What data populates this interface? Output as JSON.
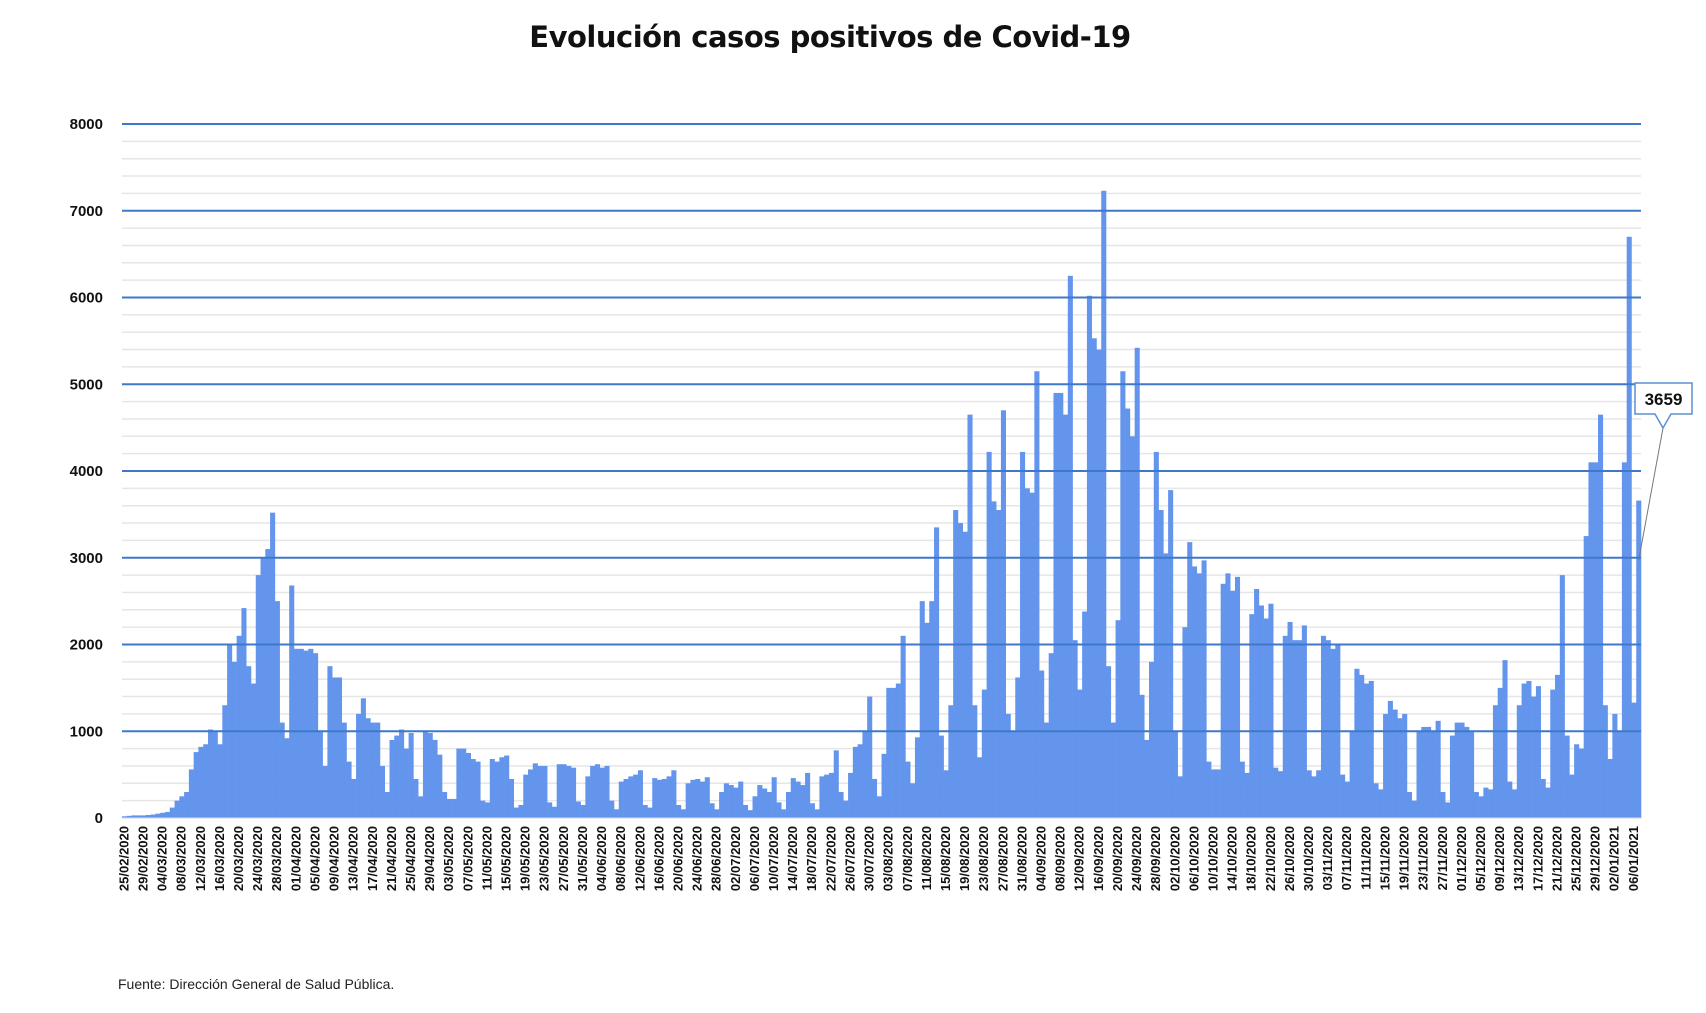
{
  "chart_data": {
    "type": "bar",
    "title": "Evolución casos positivos de Covid-19",
    "source": "Fuente: Dirección General de Salud Pública.",
    "xlabel": "",
    "ylabel": "",
    "ylim": [
      0,
      8000
    ],
    "y_ticks": [
      "0",
      "1000",
      "2000",
      "3000",
      "4000",
      "5000",
      "6000",
      "7000",
      "8000"
    ],
    "grid": {
      "major": true,
      "minor": true
    },
    "bar_color": "#6495ed",
    "gridline_color": "#3f78c8",
    "x_labels": [
      "25/02/2020",
      "29/02/2020",
      "04/03/2020",
      "08/03/2020",
      "12/03/2020",
      "16/03/2020",
      "20/03/2020",
      "24/03/2020",
      "28/03/2020",
      "01/04/2020",
      "05/04/2020",
      "09/04/2020",
      "13/04/2020",
      "17/04/2020",
      "21/04/2020",
      "25/04/2020",
      "29/04/2020",
      "03/05/2020",
      "07/05/2020",
      "11/05/2020",
      "15/05/2020",
      "19/05/2020",
      "23/05/2020",
      "27/05/2020",
      "31/05/2020",
      "04/06/2020",
      "08/06/2020",
      "12/06/2020",
      "16/06/2020",
      "20/06/2020",
      "24/06/2020",
      "28/06/2020",
      "02/07/2020",
      "06/07/2020",
      "10/07/2020",
      "14/07/2020",
      "18/07/2020",
      "22/07/2020",
      "26/07/2020",
      "30/07/2020",
      "03/08/2020",
      "07/08/2020",
      "11/08/2020",
      "15/08/2020",
      "19/08/2020",
      "23/08/2020",
      "27/08/2020",
      "31/08/2020",
      "04/09/2020",
      "08/09/2020",
      "12/09/2020",
      "16/09/2020",
      "20/09/2020",
      "24/09/2020",
      "28/09/2020",
      "02/10/2020",
      "06/10/2020",
      "10/10/2020",
      "14/10/2020",
      "18/10/2020",
      "22/10/2020",
      "26/10/2020",
      "30/10/2020",
      "03/11/2020",
      "07/11/2020",
      "11/11/2020",
      "15/11/2020",
      "19/11/2020",
      "23/11/2020",
      "27/11/2020",
      "01/12/2020",
      "05/12/2020",
      "09/12/2020",
      "13/12/2020",
      "17/12/2020",
      "21/12/2020",
      "25/12/2020",
      "29/12/2020",
      "02/01/2021",
      "06/01/2021"
    ],
    "values": [
      20,
      25,
      30,
      30,
      30,
      35,
      40,
      50,
      60,
      70,
      120,
      200,
      250,
      300,
      560,
      760,
      820,
      850,
      1020,
      1000,
      850,
      1300,
      2000,
      1800,
      2100,
      2420,
      1750,
      1550,
      2800,
      3000,
      3100,
      3520,
      2500,
      1100,
      920,
      2680,
      1950,
      1950,
      1930,
      1950,
      1900,
      1000,
      600,
      1750,
      1620,
      1620,
      1100,
      650,
      450,
      1200,
      1380,
      1150,
      1100,
      1100,
      600,
      300,
      900,
      950,
      1020,
      800,
      980,
      450,
      250,
      1000,
      980,
      900,
      730,
      300,
      220,
      220,
      800,
      800,
      750,
      680,
      650,
      200,
      180,
      680,
      650,
      700,
      720,
      450,
      120,
      150,
      500,
      560,
      630,
      600,
      600,
      180,
      130,
      620,
      620,
      600,
      580,
      190,
      150,
      480,
      600,
      620,
      580,
      600,
      200,
      100,
      420,
      450,
      480,
      500,
      550,
      150,
      120,
      460,
      440,
      450,
      480,
      550,
      150,
      100,
      400,
      440,
      450,
      420,
      470,
      170,
      100,
      300,
      400,
      380,
      350,
      420,
      150,
      90,
      250,
      380,
      340,
      300,
      470,
      180,
      100,
      300,
      460,
      420,
      380,
      520,
      170,
      100,
      480,
      500,
      520,
      780,
      300,
      200,
      520,
      820,
      850,
      1000,
      1400,
      450,
      250,
      740,
      1500,
      1500,
      1550,
      2100,
      650,
      400,
      930,
      2500,
      2250,
      2500,
      3350,
      950,
      550,
      1300,
      3550,
      3400,
      3300,
      4650,
      1300,
      700,
      1480,
      4220,
      3650,
      3550,
      4700,
      1200,
      1000,
      1620,
      4220,
      3800,
      3750,
      5150,
      1700,
      1100,
      1900,
      4900,
      4900,
      4650,
      6250,
      2050,
      1480,
      2380,
      6020,
      5530,
      5400,
      7230,
      1750,
      1100,
      2280,
      5150,
      4720,
      4400,
      5420,
      1420,
      900,
      1800,
      4220,
      3550,
      3050,
      3780,
      1000,
      480,
      2200,
      3180,
      2900,
      2820,
      2970,
      650,
      560,
      560,
      2700,
      2820,
      2620,
      2780,
      650,
      520,
      2350,
      2640,
      2450,
      2300,
      2470,
      580,
      540,
      2100,
      2260,
      2050,
      2050,
      2220,
      550,
      480,
      550,
      2100,
      2050,
      1950,
      2000,
      500,
      420,
      1000,
      1720,
      1650,
      1550,
      1580,
      400,
      330,
      1200,
      1350,
      1250,
      1150,
      1200,
      300,
      200,
      1000,
      1050,
      1050,
      1000,
      1120,
      300,
      180,
      950,
      1100,
      1100,
      1050,
      1000,
      300,
      250,
      350,
      330,
      1300,
      1500,
      1820,
      420,
      330,
      1300,
      1550,
      1580,
      1400,
      1520,
      450,
      350,
      1480,
      1650,
      2800,
      950,
      500,
      850,
      800,
      3250,
      4100,
      4100,
      4650,
      1300,
      680,
      1200,
      1000,
      4100,
      6700,
      1330,
      3659
    ],
    "annotation": {
      "label": "3659",
      "value": 3659,
      "target": "last"
    }
  }
}
